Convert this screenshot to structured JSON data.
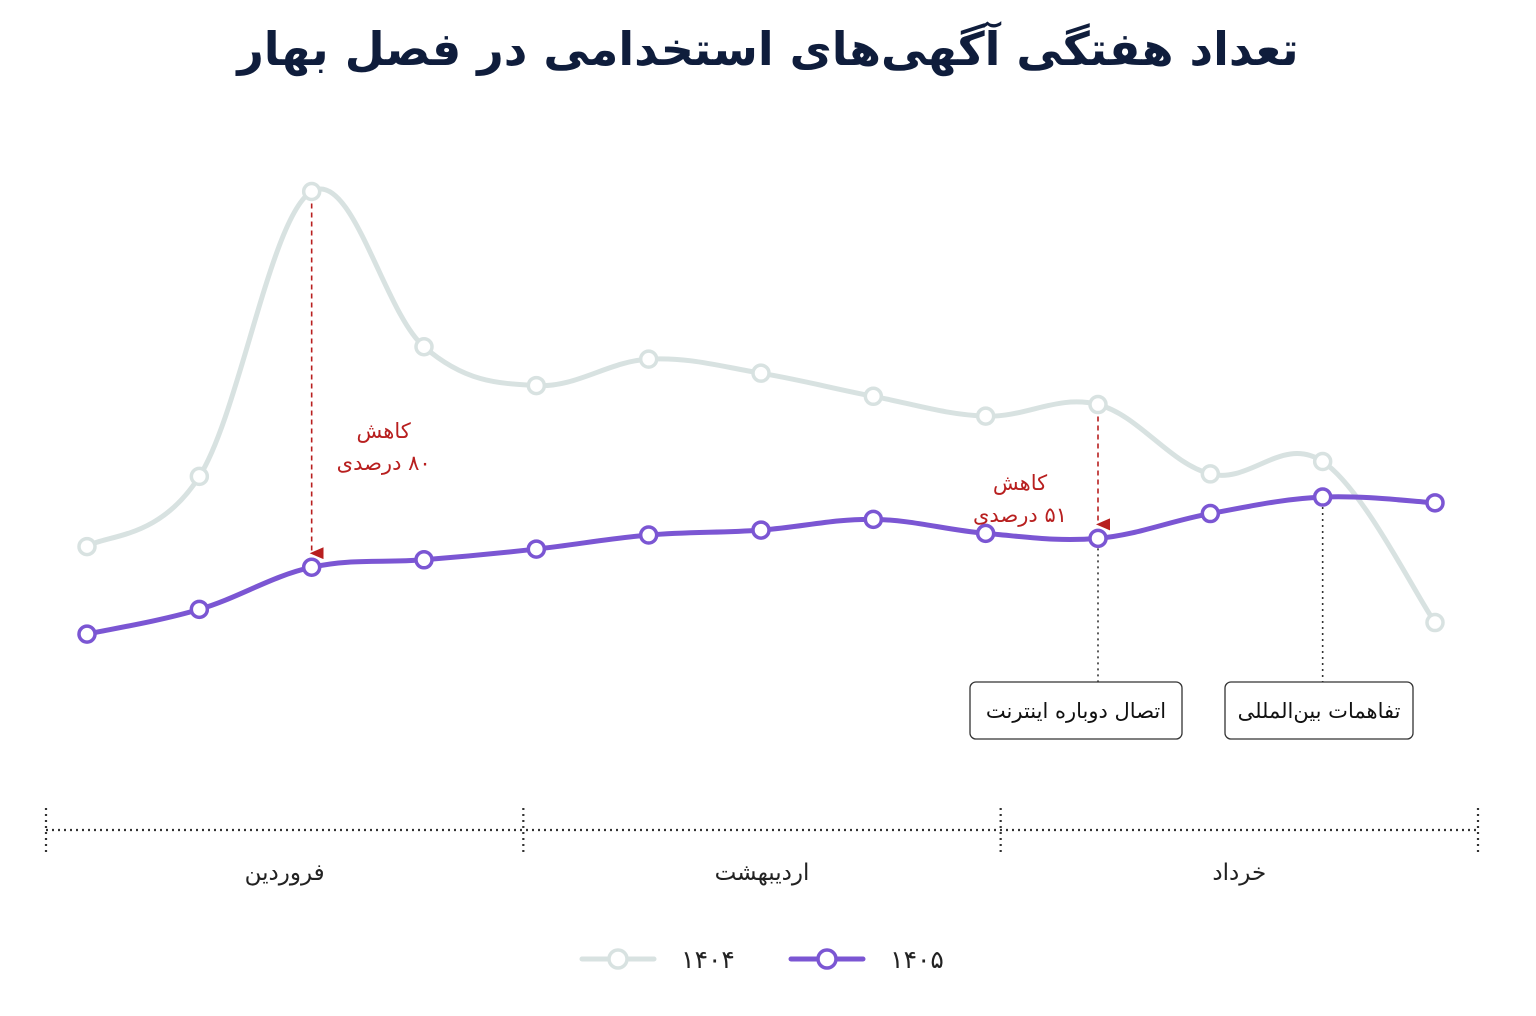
{
  "chart_data": {
    "type": "line",
    "title": "تعداد هفتگی آگهی‌های استخدامی در فصل بهار",
    "x": [
      1,
      2,
      3,
      4,
      5,
      6,
      7,
      8,
      9,
      10,
      11,
      12,
      13
    ],
    "months": [
      "فروردین",
      "اردیبهشت",
      "خرداد"
    ],
    "series": [
      {
        "name": "۱۴۰۴",
        "color": "#d8e2e1",
        "values": [
          390,
          475,
          820,
          632,
          585,
          617,
          600,
          572,
          548,
          562,
          478,
          493,
          298
        ]
      },
      {
        "name": "۱۴۰۵",
        "color": "#7b56d3",
        "values": [
          284,
          314,
          365,
          374,
          387,
          404,
          410,
          423,
          406,
          400,
          430,
          450,
          443
        ]
      }
    ],
    "ylim": [
      180,
      860
    ],
    "grid": false,
    "legend": "bottom-center",
    "annotations": [
      {
        "label": "کاهش",
        "sub": "۸۰ درصدی",
        "index": 3
      },
      {
        "label": "کاهش",
        "sub": "۵۱ درصدی",
        "index": 10
      }
    ],
    "events": [
      {
        "label": "اتصال دوباره اینترنت",
        "index": 10
      },
      {
        "label": "تفاهمات بین‌المللی",
        "index": 12
      }
    ]
  },
  "colors": {
    "annotation": "#b81f1f",
    "title": "#0f1d3c",
    "axis": "#333333"
  }
}
